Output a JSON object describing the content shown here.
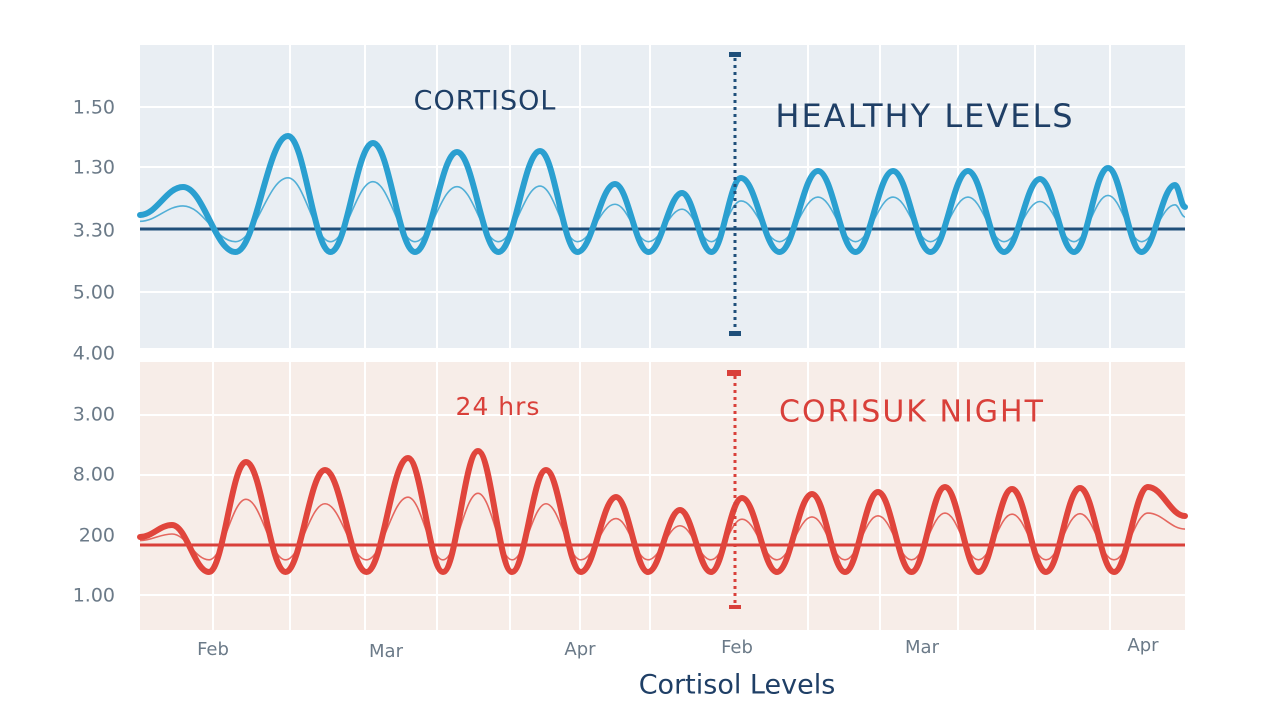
{
  "title": "Cortisol Levels",
  "panels": [
    {
      "label": "CORTISOL",
      "annotation": "HEALTHY LEVELS"
    },
    {
      "label": "24 hrs",
      "annotation": "CORISUK NIGHT"
    }
  ],
  "y_labels": [
    "1.50",
    "1.30",
    "3.30",
    "5.00",
    "4.00",
    "3.00",
    "8.00",
    "200",
    "1.00"
  ],
  "x_labels": [
    "Feb",
    "Mar",
    "Apr",
    "Feb",
    "Mar",
    "Apr"
  ]
}
